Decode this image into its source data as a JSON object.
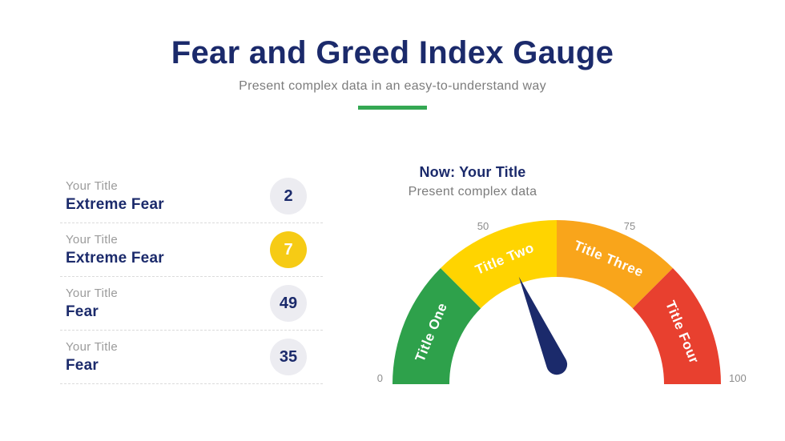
{
  "header": {
    "title": "Fear and Greed Index Gauge",
    "subtitle": "Present complex data in an easy-to-understand way",
    "accent_color": "#34A853",
    "title_color": "#1B2A6B"
  },
  "legend": {
    "items": [
      {
        "label": "Your Title",
        "name": "Extreme Fear",
        "value": "2",
        "badge_color": "#ECECF1",
        "value_color": "#1B2A6B"
      },
      {
        "label": "Your Title",
        "name": "Extreme Fear",
        "value": "7",
        "badge_color": "#F6CB15",
        "value_color": "#FFFFFF"
      },
      {
        "label": "Your Title",
        "name": "Fear",
        "value": "49",
        "badge_color": "#ECECF1",
        "value_color": "#1B2A6B"
      },
      {
        "label": "Your Title",
        "name": "Fear",
        "value": "35",
        "badge_color": "#ECECF1",
        "value_color": "#1B2A6B"
      }
    ]
  },
  "gauge_panel": {
    "heading": "Now: Your Title",
    "subheading": "Present complex data"
  },
  "chart_data": {
    "type": "gauge",
    "title": "Now: Your Title",
    "subtitle": "Present complex data",
    "range": [
      0,
      100
    ],
    "segments": [
      {
        "label": "Title One",
        "from": 0,
        "to": 25,
        "color": "#2EA14B"
      },
      {
        "label": "Title Two",
        "from": 25,
        "to": 50,
        "color": "#FFD400"
      },
      {
        "label": "Title Three",
        "from": 50,
        "to": 75,
        "color": "#F9A51B"
      },
      {
        "label": "Title Four",
        "from": 75,
        "to": 100,
        "color": "#E8402F"
      }
    ],
    "ticks": [
      {
        "label": "0",
        "value": 0
      },
      {
        "label": "50",
        "value": 50
      },
      {
        "label": "75",
        "value": 75
      },
      {
        "label": "100",
        "value": 100
      }
    ],
    "needle": {
      "value": 37,
      "color": "#1B2A6B"
    },
    "segment_label_color": "#FFFFFF",
    "tick_color": "#8C8C8C",
    "legend_values": [
      2,
      7,
      49,
      35
    ]
  }
}
